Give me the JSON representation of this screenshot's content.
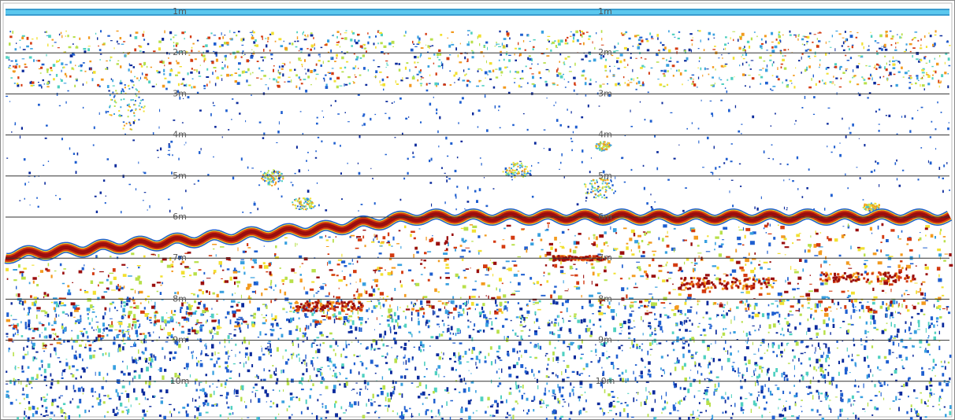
{
  "echogram": {
    "depth_labels": [
      "1m",
      "2m",
      "3m",
      "4m",
      "5m",
      "6m",
      "7m",
      "8m",
      "9m",
      "10m"
    ]
  }
}
